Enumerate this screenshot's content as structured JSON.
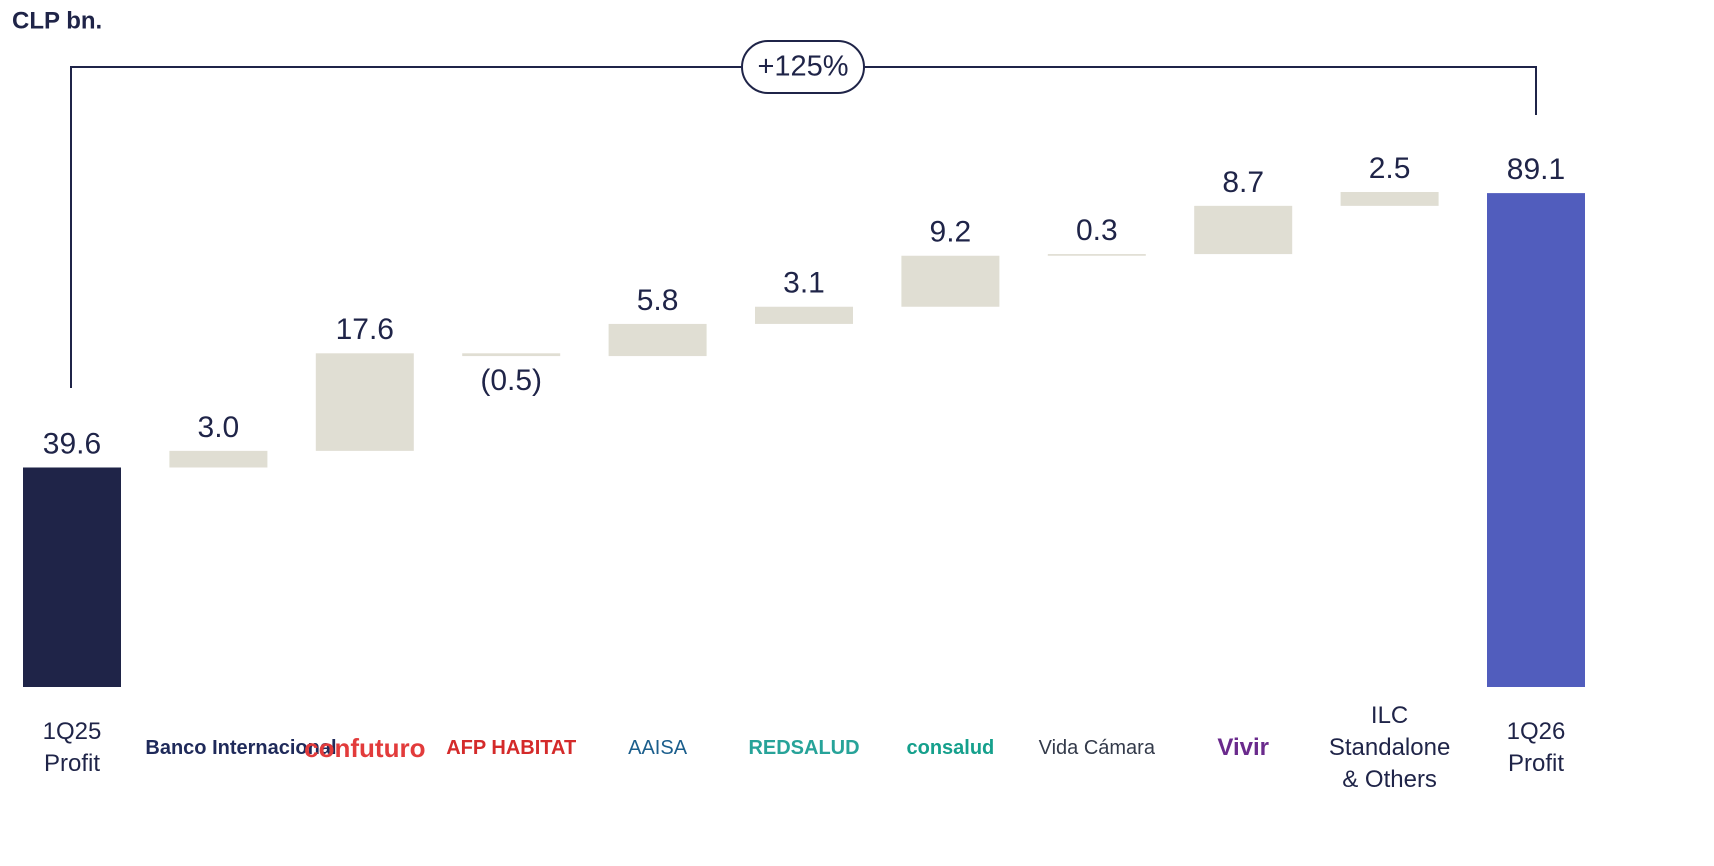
{
  "chart_data": {
    "type": "waterfall",
    "unit_label": "CLP bn.",
    "annotation": "+125%",
    "categories": [
      [
        "1Q25",
        "Profit"
      ],
      [
        "Banco Internacional"
      ],
      [
        "confuturo"
      ],
      [
        "AFP HABITAT"
      ],
      [
        "AAISA"
      ],
      [
        "REDSALUD"
      ],
      [
        "consalud"
      ],
      [
        "Vida Cámara"
      ],
      [
        "Vivir"
      ],
      [
        "ILC",
        "Standalone",
        "& Others"
      ],
      [
        "1Q26",
        "Profit"
      ]
    ],
    "values": [
      39.6,
      3.0,
      17.6,
      -0.5,
      5.8,
      3.1,
      9.2,
      0.3,
      8.7,
      2.5,
      89.1
    ],
    "value_labels": [
      "39.6",
      "3.0",
      "17.6",
      "(0.5)",
      "5.8",
      "3.1",
      "9.2",
      "0.3",
      "8.7",
      "2.5",
      "89.1"
    ],
    "measure": [
      "total",
      "relative",
      "relative",
      "relative",
      "relative",
      "relative",
      "relative",
      "relative",
      "relative",
      "relative",
      "total"
    ],
    "colors": {
      "start": "#1f2448",
      "relative": "#e0ded3",
      "end": "#515dbd"
    }
  }
}
